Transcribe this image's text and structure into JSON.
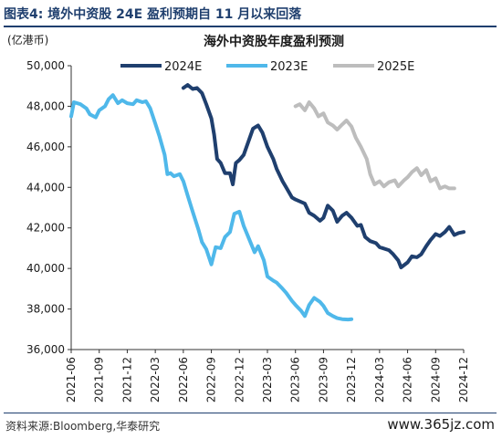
{
  "figure_label": "图表4:  境外中资股 24E 盈利预期自 11 月以来回落",
  "source_note": "资料来源:Bloomberg,华泰研究",
  "watermark": "www.365jz.com",
  "colors": {
    "s2024E": "#1f3f6e",
    "s2023E": "#4fb8ea",
    "s2025E": "#bdbdbd",
    "title_blue": "#1f3f6e"
  },
  "chart_data": {
    "type": "line",
    "title": "海外中资股年度盈利预测",
    "unit_label": "(亿港币)",
    "ylim": [
      36000,
      50000
    ],
    "y_ticks": [
      36000,
      38000,
      40000,
      42000,
      44000,
      46000,
      48000,
      50000
    ],
    "y_tick_labels": [
      "36,000",
      "38,000",
      "40,000",
      "42,000",
      "44,000",
      "46,000",
      "48,000",
      "50,000"
    ],
    "x_tick_labels": [
      "2021-06",
      "2021-09",
      "2021-12",
      "2022-03",
      "2022-06",
      "2022-09",
      "2022-12",
      "2023-03",
      "2023-06",
      "2023-09",
      "2023-12",
      "2024-03",
      "2024-06",
      "2024-09",
      "2024-12"
    ],
    "xlim": [
      "2021-06",
      "2024-12"
    ],
    "grid": false,
    "legend_position": "top",
    "series": [
      {
        "name": "2024E",
        "data": [
          [
            "2022-06",
            48900
          ],
          [
            "2022-06-15",
            49050
          ],
          [
            "2022-07",
            48850
          ],
          [
            "2022-07-15",
            48900
          ],
          [
            "2022-08",
            48650
          ],
          [
            "2022-08-15",
            48100
          ],
          [
            "2022-09",
            47400
          ],
          [
            "2022-09-10",
            46600
          ],
          [
            "2022-09-20",
            45400
          ],
          [
            "2022-10",
            45200
          ],
          [
            "2022-10-15",
            44700
          ],
          [
            "2022-11",
            44700
          ],
          [
            "2022-11-10",
            44150
          ],
          [
            "2022-11-20",
            45200
          ],
          [
            "2022-12",
            45350
          ],
          [
            "2022-12-15",
            45600
          ],
          [
            "2023-01",
            46300
          ],
          [
            "2023-01-15",
            46900
          ],
          [
            "2023-02",
            47050
          ],
          [
            "2023-02-15",
            46700
          ],
          [
            "2023-03",
            46000
          ],
          [
            "2023-03-20",
            45400
          ],
          [
            "2023-04",
            44900
          ],
          [
            "2023-04-20",
            44300
          ],
          [
            "2023-05",
            44000
          ],
          [
            "2023-05-20",
            43500
          ],
          [
            "2023-06",
            43400
          ],
          [
            "2023-07",
            43200
          ],
          [
            "2023-07-15",
            42750
          ],
          [
            "2023-08",
            42600
          ],
          [
            "2023-08-20",
            42350
          ],
          [
            "2023-09",
            42500
          ],
          [
            "2023-09-15",
            43100
          ],
          [
            "2023-10",
            42850
          ],
          [
            "2023-10-15",
            42300
          ],
          [
            "2023-11",
            42600
          ],
          [
            "2023-11-15",
            42750
          ],
          [
            "2023-12",
            42500
          ],
          [
            "2023-12-20",
            42100
          ],
          [
            "2024-01",
            42150
          ],
          [
            "2024-01-15",
            41550
          ],
          [
            "2024-02",
            41350
          ],
          [
            "2024-02-20",
            41250
          ],
          [
            "2024-03",
            41050
          ],
          [
            "2024-04",
            40900
          ],
          [
            "2024-04-15",
            40700
          ],
          [
            "2024-05",
            40400
          ],
          [
            "2024-05-10",
            40050
          ],
          [
            "2024-06",
            40300
          ],
          [
            "2024-06-15",
            40600
          ],
          [
            "2024-07",
            40550
          ],
          [
            "2024-07-15",
            40700
          ],
          [
            "2024-08",
            41100
          ],
          [
            "2024-08-15",
            41400
          ],
          [
            "2024-09",
            41700
          ],
          [
            "2024-09-15",
            41600
          ],
          [
            "2024-10",
            41800
          ],
          [
            "2024-10-15",
            42050
          ],
          [
            "2024-11",
            41650
          ],
          [
            "2024-11-15",
            41750
          ],
          [
            "2024-12",
            41800
          ]
        ]
      },
      {
        "name": "2023E",
        "data": [
          [
            "2021-06",
            47500
          ],
          [
            "2021-06-10",
            48200
          ],
          [
            "2021-07",
            48100
          ],
          [
            "2021-07-20",
            47900
          ],
          [
            "2021-08",
            47600
          ],
          [
            "2021-08-20",
            47450
          ],
          [
            "2021-09",
            47800
          ],
          [
            "2021-09-20",
            48000
          ],
          [
            "2021-10",
            48350
          ],
          [
            "2021-10-15",
            48550
          ],
          [
            "2021-11",
            48150
          ],
          [
            "2021-11-15",
            48300
          ],
          [
            "2021-12",
            48150
          ],
          [
            "2021-12-20",
            48100
          ],
          [
            "2022-01",
            48300
          ],
          [
            "2022-01-20",
            48200
          ],
          [
            "2022-02",
            48250
          ],
          [
            "2022-02-15",
            47900
          ],
          [
            "2022-03",
            47150
          ],
          [
            "2022-03-15",
            46500
          ],
          [
            "2022-04",
            45600
          ],
          [
            "2022-04-10",
            44650
          ],
          [
            "2022-04-20",
            44700
          ],
          [
            "2022-05",
            44550
          ],
          [
            "2022-05-20",
            44650
          ],
          [
            "2022-06",
            44300
          ],
          [
            "2022-06-15",
            43600
          ],
          [
            "2022-07",
            42800
          ],
          [
            "2022-07-20",
            41900
          ],
          [
            "2022-08",
            41300
          ],
          [
            "2022-08-15",
            40950
          ],
          [
            "2022-09",
            40200
          ],
          [
            "2022-09-15",
            41050
          ],
          [
            "2022-10",
            41000
          ],
          [
            "2022-10-15",
            41550
          ],
          [
            "2022-11",
            41800
          ],
          [
            "2022-11-15",
            42700
          ],
          [
            "2022-12",
            42800
          ],
          [
            "2022-12-15",
            42100
          ],
          [
            "2023-01",
            41500
          ],
          [
            "2023-01-20",
            40800
          ],
          [
            "2023-02",
            41100
          ],
          [
            "2023-02-20",
            40400
          ],
          [
            "2023-03",
            39600
          ],
          [
            "2023-03-20",
            39400
          ],
          [
            "2023-04",
            39300
          ],
          [
            "2023-04-20",
            39000
          ],
          [
            "2023-05",
            38800
          ],
          [
            "2023-05-20",
            38400
          ],
          [
            "2023-06",
            38200
          ],
          [
            "2023-06-20",
            37900
          ],
          [
            "2023-07",
            37650
          ],
          [
            "2023-07-15",
            38200
          ],
          [
            "2023-08",
            38550
          ],
          [
            "2023-08-20",
            38350
          ],
          [
            "2023-09",
            38150
          ],
          [
            "2023-09-15",
            37800
          ],
          [
            "2023-10",
            37650
          ],
          [
            "2023-10-15",
            37550
          ],
          [
            "2023-11",
            37500
          ],
          [
            "2023-11-20",
            37480
          ],
          [
            "2023-12",
            37500
          ]
        ]
      },
      {
        "name": "2025E",
        "data": [
          [
            "2023-06",
            48000
          ],
          [
            "2023-06-15",
            48100
          ],
          [
            "2023-07",
            47800
          ],
          [
            "2023-07-15",
            48200
          ],
          [
            "2023-08",
            47900
          ],
          [
            "2023-08-15",
            47500
          ],
          [
            "2023-09",
            47650
          ],
          [
            "2023-09-15",
            47200
          ],
          [
            "2023-10",
            47050
          ],
          [
            "2023-10-15",
            46850
          ],
          [
            "2023-11",
            47100
          ],
          [
            "2023-11-15",
            47300
          ],
          [
            "2023-12",
            47000
          ],
          [
            "2023-12-15",
            46450
          ],
          [
            "2024-01",
            46000
          ],
          [
            "2024-01-20",
            45400
          ],
          [
            "2024-02",
            44650
          ],
          [
            "2024-02-15",
            44150
          ],
          [
            "2024-03",
            44300
          ],
          [
            "2024-03-15",
            44050
          ],
          [
            "2024-04",
            44250
          ],
          [
            "2024-04-20",
            44350
          ],
          [
            "2024-05",
            44050
          ],
          [
            "2024-05-20",
            44350
          ],
          [
            "2024-06",
            44500
          ],
          [
            "2024-06-15",
            44750
          ],
          [
            "2024-07",
            44950
          ],
          [
            "2024-07-15",
            44600
          ],
          [
            "2024-08",
            44850
          ],
          [
            "2024-08-15",
            44300
          ],
          [
            "2024-09",
            44450
          ],
          [
            "2024-09-15",
            43950
          ],
          [
            "2024-10",
            44050
          ],
          [
            "2024-10-15",
            43950
          ],
          [
            "2024-11",
            43950
          ]
        ]
      }
    ]
  }
}
